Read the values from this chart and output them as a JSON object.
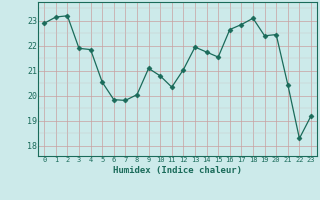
{
  "x": [
    0,
    1,
    2,
    3,
    4,
    5,
    6,
    7,
    8,
    9,
    10,
    11,
    12,
    13,
    14,
    15,
    16,
    17,
    18,
    19,
    20,
    21,
    22,
    23
  ],
  "y": [
    22.9,
    23.15,
    23.2,
    21.9,
    21.85,
    20.55,
    19.85,
    19.82,
    20.05,
    21.1,
    20.8,
    20.35,
    21.05,
    21.95,
    21.75,
    21.55,
    22.65,
    22.85,
    23.1,
    22.4,
    22.45,
    20.45,
    18.3,
    19.2
  ],
  "line_color": "#1a6b5a",
  "marker": "D",
  "marker_size": 2.5,
  "bg_color": "#cceaea",
  "grid_color_major": "#b0b0b0",
  "grid_color_minor": "#d4e8e8",
  "xlabel": "Humidex (Indice chaleur)",
  "ylim": [
    17.6,
    23.75
  ],
  "xlim": [
    -0.5,
    23.5
  ],
  "yticks": [
    18,
    19,
    20,
    21,
    22,
    23
  ],
  "xticks": [
    0,
    1,
    2,
    3,
    4,
    5,
    6,
    7,
    8,
    9,
    10,
    11,
    12,
    13,
    14,
    15,
    16,
    17,
    18,
    19,
    20,
    21,
    22,
    23
  ]
}
